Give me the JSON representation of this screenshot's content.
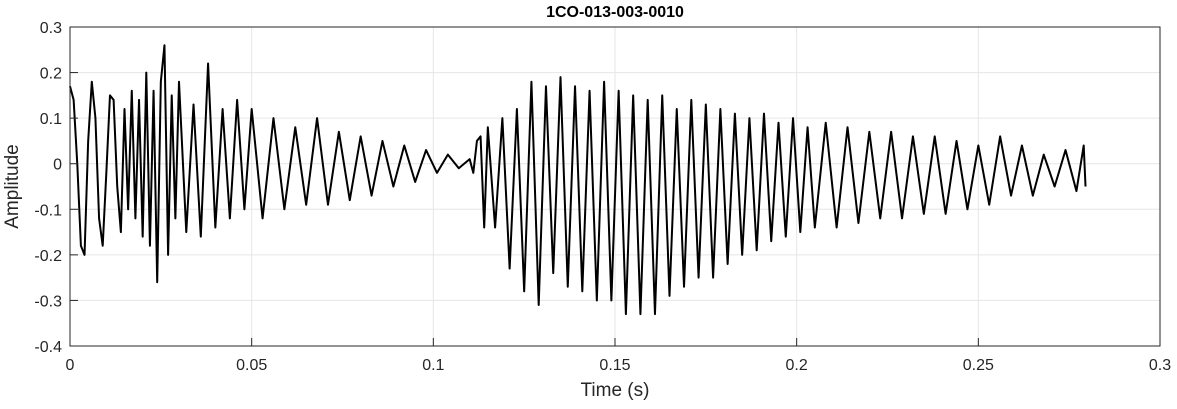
{
  "chart_data": {
    "type": "line",
    "title": "1CO-013-003-0010",
    "xlabel": "Time (s)",
    "ylabel": "Amplitude",
    "xlim": [
      0,
      0.3
    ],
    "ylim": [
      -0.4,
      0.3
    ],
    "xticks": [
      0,
      0.05,
      0.1,
      0.15,
      0.2,
      0.25,
      0.3
    ],
    "xtick_labels": [
      "0",
      "0.05",
      "0.1",
      "0.15",
      "0.2",
      "0.25",
      "0.3"
    ],
    "yticks": [
      -0.4,
      -0.3,
      -0.2,
      -0.1,
      0,
      0.1,
      0.2,
      0.3
    ],
    "ytick_labels": [
      "-0.4",
      "-0.3",
      "-0.2",
      "-0.1",
      "0",
      "0.1",
      "0.2",
      "0.3"
    ],
    "grid": true,
    "line_color": "#000000",
    "grid_color": "#e6e6e6",
    "axis_color": "#262626",
    "series": [
      {
        "x": [
          0,
          0.001,
          0.002,
          0.003,
          0.004,
          0.005,
          0.006,
          0.007,
          0.008,
          0.009,
          0.01,
          0.011,
          0.012,
          0.013,
          0.014,
          0.015,
          0.016,
          0.017,
          0.018,
          0.019,
          0.02,
          0.021,
          0.022,
          0.023,
          0.024,
          0.025,
          0.026,
          0.027,
          0.028,
          0.029,
          0.03,
          0.032,
          0.034,
          0.036,
          0.038,
          0.04,
          0.042,
          0.044,
          0.046,
          0.048,
          0.05,
          0.053,
          0.056,
          0.059,
          0.062,
          0.065,
          0.068,
          0.071,
          0.074,
          0.077,
          0.08,
          0.083,
          0.086,
          0.089,
          0.092,
          0.095,
          0.098,
          0.101,
          0.104,
          0.107,
          0.11,
          0.111,
          0.112,
          0.113,
          0.114,
          0.115,
          0.117,
          0.119,
          0.121,
          0.123,
          0.125,
          0.127,
          0.129,
          0.131,
          0.133,
          0.135,
          0.137,
          0.139,
          0.141,
          0.143,
          0.145,
          0.147,
          0.149,
          0.151,
          0.153,
          0.155,
          0.157,
          0.159,
          0.161,
          0.163,
          0.165,
          0.167,
          0.169,
          0.171,
          0.173,
          0.175,
          0.177,
          0.179,
          0.181,
          0.183,
          0.185,
          0.187,
          0.189,
          0.191,
          0.193,
          0.195,
          0.197,
          0.199,
          0.201,
          0.203,
          0.205,
          0.208,
          0.211,
          0.214,
          0.217,
          0.22,
          0.223,
          0.226,
          0.229,
          0.232,
          0.235,
          0.238,
          0.241,
          0.244,
          0.247,
          0.25,
          0.253,
          0.256,
          0.259,
          0.262,
          0.265,
          0.268,
          0.271,
          0.274,
          0.277,
          0.279,
          0.2795
        ],
        "y": [
          0.17,
          0.14,
          0.0,
          -0.18,
          -0.2,
          0.05,
          0.18,
          0.1,
          -0.12,
          -0.18,
          -0.02,
          0.15,
          0.14,
          -0.05,
          -0.15,
          0.12,
          -0.1,
          0.16,
          -0.12,
          0.14,
          -0.16,
          0.2,
          -0.18,
          0.16,
          -0.26,
          0.18,
          0.26,
          -0.2,
          0.15,
          -0.12,
          0.18,
          -0.15,
          0.13,
          -0.16,
          0.22,
          -0.14,
          0.12,
          -0.12,
          0.14,
          -0.1,
          0.12,
          -0.12,
          0.1,
          -0.1,
          0.08,
          -0.09,
          0.1,
          -0.09,
          0.07,
          -0.08,
          0.06,
          -0.07,
          0.05,
          -0.05,
          0.04,
          -0.04,
          0.03,
          -0.02,
          0.02,
          -0.01,
          0.01,
          -0.02,
          0.05,
          0.06,
          -0.14,
          0.08,
          -0.14,
          0.1,
          -0.23,
          0.12,
          -0.28,
          0.18,
          -0.31,
          0.17,
          -0.24,
          0.19,
          -0.27,
          0.17,
          -0.28,
          0.16,
          -0.3,
          0.18,
          -0.3,
          0.16,
          -0.33,
          0.15,
          -0.33,
          0.14,
          -0.33,
          0.15,
          -0.29,
          0.12,
          -0.27,
          0.14,
          -0.25,
          0.13,
          -0.25,
          0.12,
          -0.22,
          0.11,
          -0.2,
          0.1,
          -0.19,
          0.11,
          -0.17,
          0.09,
          -0.16,
          0.1,
          -0.15,
          0.08,
          -0.14,
          0.09,
          -0.14,
          0.08,
          -0.13,
          0.07,
          -0.12,
          0.07,
          -0.12,
          0.06,
          -0.11,
          0.06,
          -0.11,
          0.05,
          -0.1,
          0.04,
          -0.09,
          0.06,
          -0.07,
          0.04,
          -0.07,
          0.02,
          -0.05,
          0.03,
          -0.06,
          0.04,
          -0.05
        ]
      }
    ]
  }
}
